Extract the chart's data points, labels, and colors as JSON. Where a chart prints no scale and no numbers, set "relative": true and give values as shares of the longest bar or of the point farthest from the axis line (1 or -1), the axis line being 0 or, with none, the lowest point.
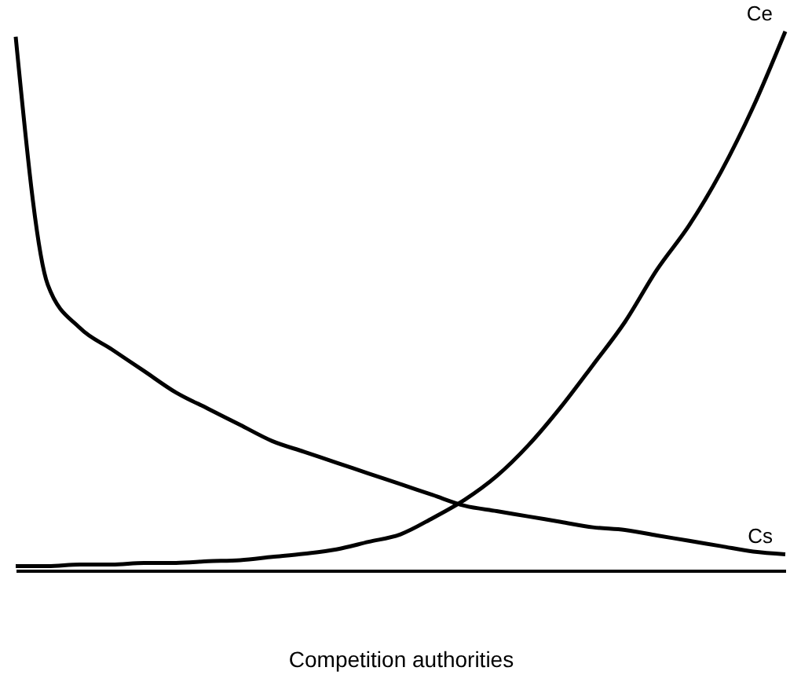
{
  "chart_data": {
    "type": "line",
    "relative": true,
    "xlabel": "Competition authorities",
    "categories": [
      null,
      null,
      null,
      null,
      null,
      null,
      null,
      null,
      null,
      null,
      null,
      null,
      null,
      null,
      null,
      null,
      null,
      null,
      null,
      null,
      null,
      null,
      null,
      null,
      null
    ],
    "series": [
      {
        "name": "Ce",
        "color": "#000000",
        "values": [
          0.008,
          0.008,
          0.011,
          0.011,
          0.014,
          0.014,
          0.017,
          0.019,
          0.025,
          0.031,
          0.039,
          0.053,
          0.067,
          0.097,
          0.131,
          0.175,
          0.233,
          0.303,
          0.381,
          0.461,
          0.558,
          0.64,
          0.74,
          0.86,
          1.0
        ]
      },
      {
        "name": "Cs",
        "color": "#000000",
        "values": [
          0.99,
          0.53,
          0.45,
          0.41,
          0.37,
          0.33,
          0.3,
          0.27,
          0.24,
          0.22,
          0.2,
          0.18,
          0.16,
          0.14,
          0.12,
          0.11,
          0.1,
          0.09,
          0.08,
          0.075,
          0.065,
          0.055,
          0.045,
          0.035,
          0.03
        ]
      }
    ]
  }
}
